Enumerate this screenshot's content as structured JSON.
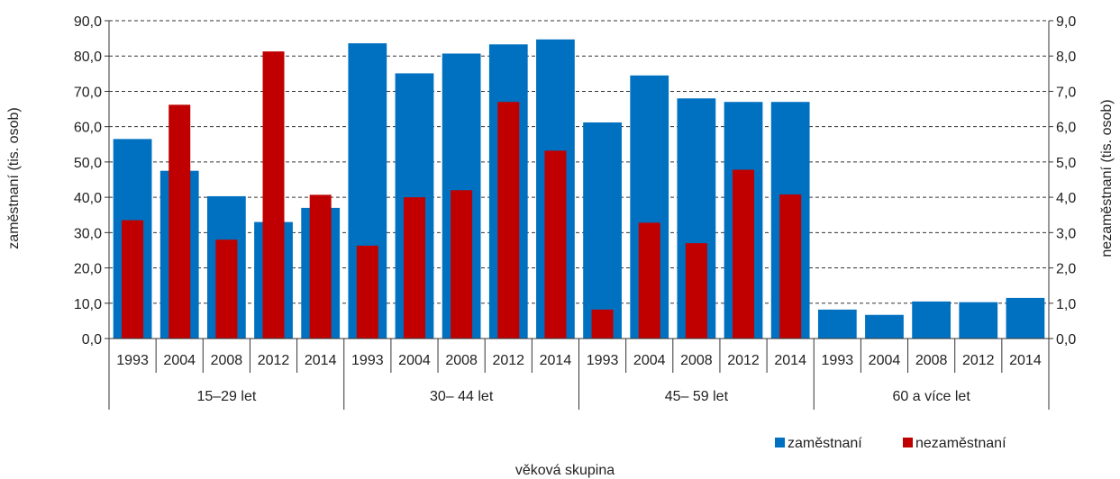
{
  "chart_data": {
    "type": "bar",
    "groups": [
      {
        "label": "15–29 let",
        "years": [
          "1993",
          "2004",
          "2008",
          "2012",
          "2014"
        ]
      },
      {
        "label": "30– 44 let",
        "years": [
          "1993",
          "2004",
          "2008",
          "2012",
          "2014"
        ]
      },
      {
        "label": "45– 59 let",
        "years": [
          "1993",
          "2004",
          "2008",
          "2012",
          "2014"
        ]
      },
      {
        "label": "60 a více let",
        "years": [
          "1993",
          "2004",
          "2008",
          "2012",
          "2014"
        ]
      }
    ],
    "series": [
      {
        "name": "zaměstnaní",
        "axis": "left",
        "color": "#0070c0",
        "values": [
          56.5,
          47.5,
          40.3,
          33.0,
          37.0,
          83.6,
          75.1,
          80.7,
          83.3,
          84.7,
          61.2,
          74.5,
          68.0,
          67.0,
          67.0,
          8.2,
          6.7,
          10.5,
          10.3,
          11.5
        ]
      },
      {
        "name": "nezaměstnaní",
        "axis": "right",
        "color": "#c00000",
        "values": [
          3.35,
          6.62,
          2.8,
          8.13,
          4.07,
          2.63,
          4.0,
          4.2,
          6.7,
          5.32,
          0.82,
          3.28,
          2.7,
          4.78,
          4.08,
          null,
          null,
          null,
          null,
          null
        ]
      }
    ],
    "y_left": {
      "label": "zaměstnaní  (tis.  osob)",
      "lim": [
        0,
        90
      ],
      "ticks": [
        "0,0",
        "10,0",
        "20,0",
        "30,0",
        "40,0",
        "50,0",
        "60,0",
        "70,0",
        "80,0",
        "90,0"
      ]
    },
    "y_right": {
      "label": "nezaměstnaní  (tis.  osob)",
      "lim": [
        0,
        9
      ],
      "ticks": [
        "0,0",
        "1,0",
        "2,0",
        "3,0",
        "4,0",
        "5,0",
        "6,0",
        "7,0",
        "8,0",
        "9,0"
      ]
    },
    "xlabel": "věková  skupina",
    "legend_position": "bottom-right",
    "grid": "dashed-horizontal"
  }
}
